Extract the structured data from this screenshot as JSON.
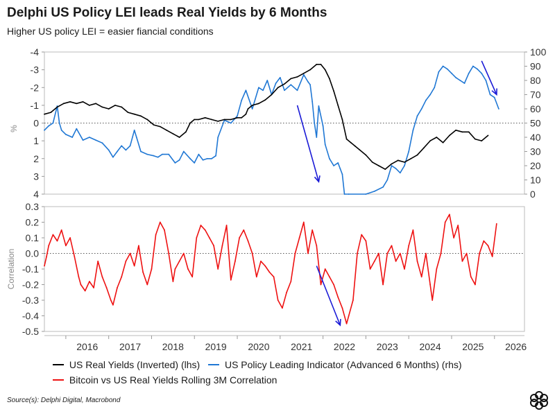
{
  "header": {
    "title": "Delphi US Policy LEI leads Real Yields by 6 Months",
    "subtitle": "Higher US policy LEI = easier fiancial conditions"
  },
  "legend": {
    "items": [
      {
        "label": "US Real Yields (Inverted) (lhs)",
        "color": "#000000"
      },
      {
        "label": "US Policy Leading Indicator (Advanced 6 Months) (rhs)",
        "color": "#1f77d4"
      },
      {
        "label": "Bitcoin vs US Real Yields Rolling 3M Correlation",
        "color": "#ee1111"
      }
    ]
  },
  "footer": {
    "source": "Source(s): Delphi Digital, Macrobond"
  },
  "colors": {
    "real_yields": "#000000",
    "lei": "#1f77d4",
    "correlation": "#ee1111",
    "arrow": "#1a1ad6"
  },
  "chart_data": [
    {
      "type": "line",
      "panel": "top",
      "ylabel": "%",
      "xlim": [
        2015.5,
        2026.7
      ],
      "y_left": {
        "inverted": true,
        "range": [
          -4,
          4
        ],
        "ticks": [
          -4,
          -3,
          -2,
          -1,
          0,
          1,
          2,
          3,
          4
        ]
      },
      "y_right": {
        "range": [
          0,
          100
        ],
        "ticks": [
          0,
          10,
          20,
          30,
          40,
          50,
          60,
          70,
          80,
          90,
          100
        ]
      },
      "zero_line": true,
      "series": [
        {
          "name": "US Real Yields (Inverted) (lhs)",
          "axis": "left",
          "x": [
            2015.5,
            2015.65,
            2015.8,
            2015.95,
            2016.1,
            2016.25,
            2016.4,
            2016.55,
            2016.7,
            2016.85,
            2017.0,
            2017.15,
            2017.3,
            2017.45,
            2017.6,
            2017.75,
            2017.9,
            2018.05,
            2018.2,
            2018.35,
            2018.5,
            2018.65,
            2018.8,
            2018.9,
            2019.0,
            2019.1,
            2019.25,
            2019.4,
            2019.55,
            2019.7,
            2019.85,
            2020.0,
            2020.1,
            2020.2,
            2020.25,
            2020.35,
            2020.5,
            2020.65,
            2020.8,
            2020.95,
            2021.1,
            2021.25,
            2021.4,
            2021.55,
            2021.7,
            2021.85,
            2021.95,
            2022.05,
            2022.15,
            2022.25,
            2022.35,
            2022.45,
            2022.55,
            2022.65,
            2022.75,
            2022.85,
            2023.0,
            2023.15,
            2023.3,
            2023.45,
            2023.6,
            2023.75,
            2023.9,
            2024.05,
            2024.2,
            2024.35,
            2024.5,
            2024.65,
            2024.8,
            2024.95,
            2025.1,
            2025.25,
            2025.4,
            2025.55,
            2025.7,
            2025.85
          ],
          "y": [
            -0.5,
            -0.6,
            -0.9,
            -1.1,
            -1.2,
            -1.1,
            -1.2,
            -1.0,
            -1.1,
            -0.9,
            -0.8,
            -1.0,
            -0.9,
            -0.6,
            -0.5,
            -0.4,
            -0.2,
            0.1,
            0.2,
            0.4,
            0.6,
            0.8,
            0.5,
            0.0,
            -0.2,
            -0.2,
            -0.3,
            -0.2,
            -0.1,
            -0.2,
            -0.2,
            -0.3,
            -0.3,
            -0.5,
            -0.8,
            -1.0,
            -1.1,
            -1.3,
            -1.6,
            -2.0,
            -2.2,
            -2.5,
            -2.6,
            -2.8,
            -3.0,
            -3.3,
            -3.3,
            -3.0,
            -2.5,
            -1.8,
            -1.0,
            -0.2,
            0.9,
            1.1,
            1.3,
            1.5,
            1.8,
            2.2,
            2.4,
            2.6,
            2.3,
            2.1,
            2.2,
            2.0,
            1.8,
            1.4,
            1.0,
            0.8,
            1.1,
            0.7,
            0.4,
            0.5,
            0.5,
            0.9,
            1.0,
            0.7
          ]
        },
        {
          "name": "US Policy Leading Indicator (Advanced 6 Months) (rhs)",
          "axis": "right",
          "x": [
            2015.5,
            2015.6,
            2015.7,
            2015.8,
            2015.85,
            2015.9,
            2016.0,
            2016.15,
            2016.25,
            2016.4,
            2016.55,
            2016.7,
            2016.85,
            2017.0,
            2017.1,
            2017.2,
            2017.3,
            2017.4,
            2017.5,
            2017.6,
            2017.65,
            2017.75,
            2017.9,
            2018.05,
            2018.15,
            2018.25,
            2018.4,
            2018.55,
            2018.65,
            2018.75,
            2018.9,
            2019.0,
            2019.1,
            2019.2,
            2019.3,
            2019.4,
            2019.5,
            2019.55,
            2019.7,
            2019.85,
            2020.0,
            2020.1,
            2020.2,
            2020.35,
            2020.5,
            2020.6,
            2020.7,
            2020.8,
            2020.9,
            2021.0,
            2021.1,
            2021.25,
            2021.4,
            2021.55,
            2021.65,
            2021.7,
            2021.75,
            2021.8,
            2021.85,
            2021.9,
            2022.0,
            2022.05,
            2022.15,
            2022.25,
            2022.35,
            2022.4,
            2022.45,
            2022.5,
            2022.6,
            2023.0,
            2023.2,
            2023.4,
            2023.5,
            2023.6,
            2023.7,
            2023.8,
            2023.9,
            2024.0,
            2024.1,
            2024.2,
            2024.3,
            2024.4,
            2024.5,
            2024.6,
            2024.7,
            2024.8,
            2024.9,
            2025.0,
            2025.1,
            2025.2,
            2025.3,
            2025.4,
            2025.5,
            2025.6,
            2025.7,
            2025.8,
            2025.9,
            2026.0,
            2026.1
          ],
          "y": [
            45,
            48,
            50,
            62,
            50,
            45,
            42,
            40,
            46,
            38,
            40,
            38,
            36,
            31,
            26,
            30,
            34,
            31,
            34,
            45,
            40,
            30,
            28,
            27,
            26,
            28,
            28,
            22,
            24,
            30,
            25,
            22,
            28,
            24,
            25,
            25,
            27,
            40,
            52,
            50,
            55,
            66,
            73,
            60,
            75,
            73,
            80,
            70,
            78,
            82,
            73,
            77,
            73,
            84,
            79,
            77,
            65,
            50,
            40,
            62,
            48,
            35,
            25,
            20,
            22,
            18,
            14,
            0,
            0,
            0,
            2,
            5,
            10,
            20,
            18,
            15,
            20,
            30,
            45,
            55,
            60,
            66,
            70,
            75,
            86,
            90,
            88,
            85,
            82,
            80,
            78,
            85,
            90,
            88,
            85,
            80,
            70,
            68,
            60
          ]
        },
        {
          "name": "arrows",
          "kind": "annotation-arrows",
          "arrows": [
            {
              "from": [
                2021.4,
                -1.0
              ],
              "to": [
                2021.9,
                3.3
              ]
            },
            {
              "from": [
                2025.7,
                -3.5
              ],
              "to": [
                2026.05,
                -1.6
              ]
            }
          ]
        }
      ]
    },
    {
      "type": "line",
      "panel": "bottom",
      "ylabel": "Correlation",
      "xlim": [
        2015.5,
        2026.7
      ],
      "ylim": [
        -0.5,
        0.3
      ],
      "yticks": [
        -0.5,
        -0.4,
        -0.3,
        -0.2,
        -0.1,
        0.0,
        0.1,
        0.2,
        0.3
      ],
      "ytick_labels": [
        "-0.5",
        "-0.4",
        "-0.3",
        "-0.2",
        "-0.1",
        "0.0",
        "0.1",
        "0.2",
        "0.3"
      ],
      "xticks": [
        2016,
        2017,
        2018,
        2019,
        2020,
        2021,
        2022,
        2023,
        2024,
        2025,
        2026
      ],
      "xtick_labels": [
        "2016",
        "2017",
        "2018",
        "2019",
        "2020",
        "2021",
        "2022",
        "2023",
        "2024",
        "2025",
        "2026"
      ],
      "zero_line": true,
      "series": [
        {
          "name": "Bitcoin vs US Real Yields Rolling 3M Correlation",
          "x": [
            2015.5,
            2015.55,
            2015.6,
            2015.7,
            2015.8,
            2015.9,
            2016.0,
            2016.1,
            2016.2,
            2016.3,
            2016.35,
            2016.45,
            2016.55,
            2016.65,
            2016.75,
            2016.85,
            2016.95,
            2017.05,
            2017.1,
            2017.2,
            2017.3,
            2017.4,
            2017.5,
            2017.6,
            2017.7,
            2017.8,
            2017.9,
            2018.0,
            2018.1,
            2018.2,
            2018.3,
            2018.4,
            2018.5,
            2018.55,
            2018.65,
            2018.75,
            2018.85,
            2018.95,
            2019.05,
            2019.15,
            2019.25,
            2019.35,
            2019.45,
            2019.55,
            2019.65,
            2019.75,
            2019.85,
            2019.95,
            2020.05,
            2020.15,
            2020.25,
            2020.35,
            2020.45,
            2020.55,
            2020.65,
            2020.75,
            2020.85,
            2020.95,
            2021.05,
            2021.15,
            2021.25,
            2021.35,
            2021.45,
            2021.55,
            2021.65,
            2021.75,
            2021.85,
            2021.95,
            2022.05,
            2022.15,
            2022.25,
            2022.35,
            2022.45,
            2022.55,
            2022.6,
            2022.7,
            2022.8,
            2022.9,
            2023.0,
            2023.1,
            2023.2,
            2023.3,
            2023.4,
            2023.5,
            2023.6,
            2023.7,
            2023.8,
            2023.9,
            2024.0,
            2024.1,
            2024.2,
            2024.3,
            2024.4,
            2024.5,
            2024.55,
            2024.65,
            2024.75,
            2024.85,
            2024.95,
            2025.05,
            2025.15,
            2025.25,
            2025.35,
            2025.45,
            2025.55,
            2025.65,
            2025.75,
            2025.85,
            2025.95,
            2026.05
          ],
          "y": [
            -0.08,
            -0.02,
            0.05,
            0.12,
            0.08,
            0.15,
            0.05,
            0.1,
            -0.02,
            -0.15,
            -0.2,
            -0.24,
            -0.18,
            -0.22,
            -0.05,
            -0.15,
            -0.22,
            -0.3,
            -0.33,
            -0.22,
            -0.15,
            -0.05,
            0.0,
            -0.08,
            0.05,
            -0.12,
            -0.2,
            -0.1,
            0.12,
            0.2,
            0.15,
            0.0,
            -0.18,
            -0.1,
            -0.05,
            0.0,
            -0.1,
            -0.15,
            0.1,
            0.18,
            0.15,
            0.1,
            0.05,
            -0.1,
            0.05,
            0.18,
            -0.17,
            -0.05,
            0.1,
            0.15,
            0.08,
            0.0,
            -0.15,
            -0.05,
            -0.08,
            -0.12,
            -0.15,
            -0.3,
            -0.35,
            -0.25,
            -0.18,
            0.0,
            0.1,
            0.2,
            0.0,
            0.15,
            0.05,
            -0.2,
            -0.1,
            -0.15,
            -0.2,
            -0.28,
            -0.35,
            -0.45,
            -0.4,
            -0.3,
            0.0,
            0.12,
            0.08,
            -0.1,
            -0.05,
            0.0,
            -0.2,
            0.0,
            0.05,
            -0.05,
            0.0,
            -0.1,
            0.05,
            0.15,
            -0.05,
            -0.15,
            0.0,
            -0.2,
            -0.3,
            -0.1,
            0.0,
            0.2,
            0.25,
            0.1,
            0.18,
            -0.05,
            0.0,
            -0.15,
            -0.2,
            0.0,
            0.08,
            0.05,
            -0.02,
            0.19
          ]
        },
        {
          "name": "arrows",
          "kind": "annotation-arrows",
          "arrows": [
            {
              "from": [
                2021.85,
                -0.08
              ],
              "to": [
                2022.4,
                -0.46
              ]
            }
          ]
        }
      ]
    }
  ]
}
